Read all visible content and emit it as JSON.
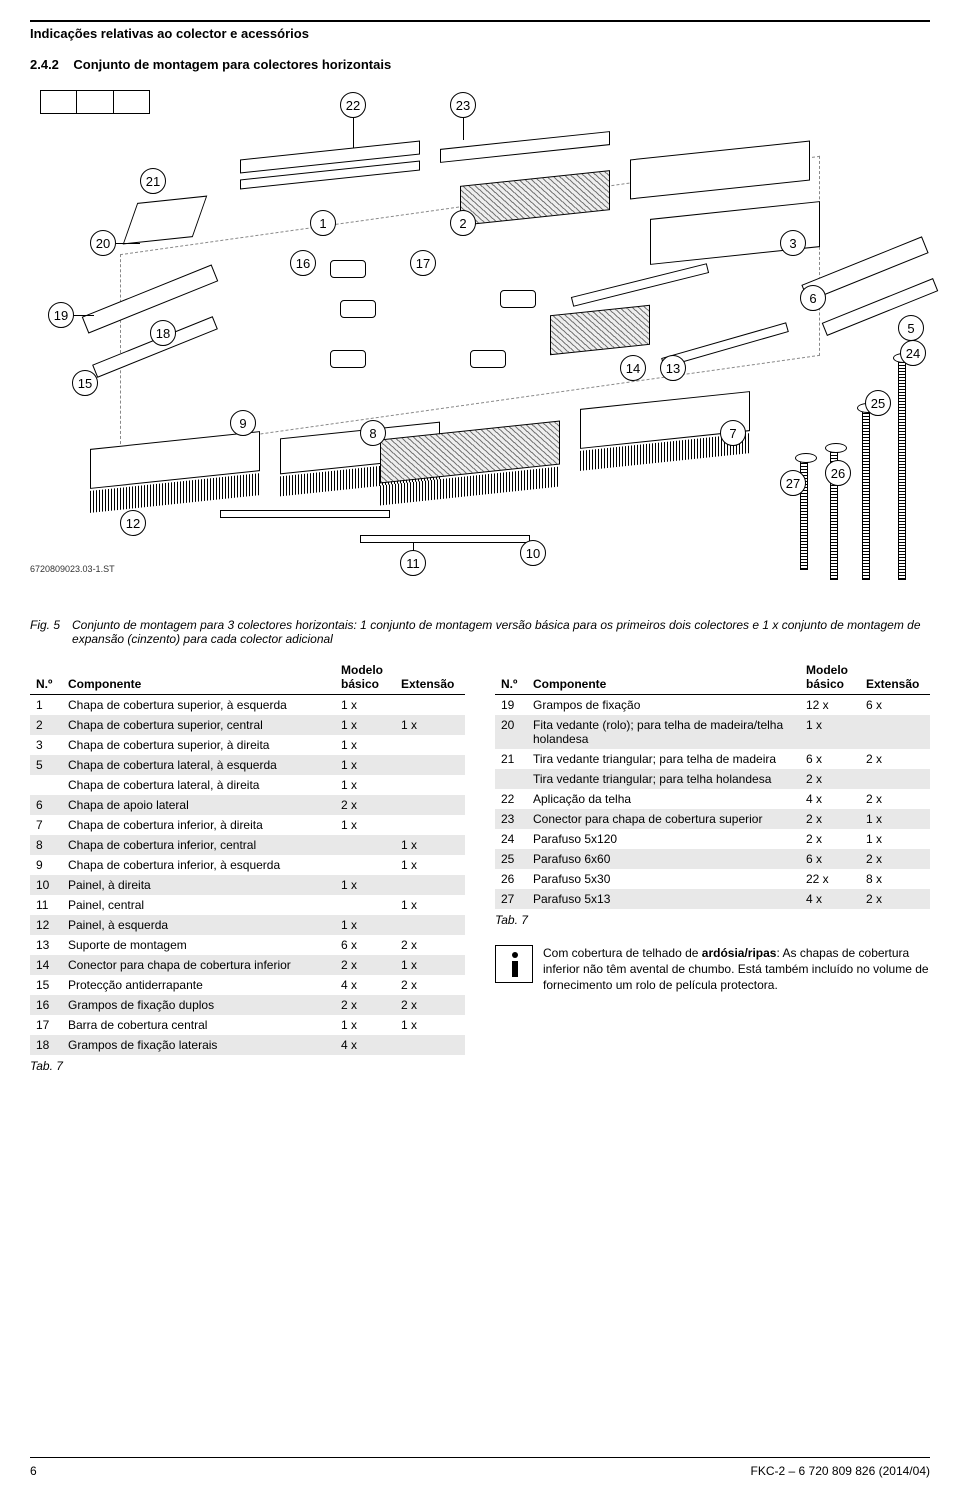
{
  "header": {
    "section_label": "Indicações relativas ao colector e acessórios",
    "subsection": "2.4.2",
    "subsection_title": "Conjunto de montagem para colectores horizontais"
  },
  "diagram": {
    "doc_id": "6720809023.03-1.ST",
    "callouts": [
      "1",
      "2",
      "3",
      "5",
      "6",
      "7",
      "8",
      "9",
      "10",
      "11",
      "12",
      "13",
      "14",
      "15",
      "16",
      "17",
      "18",
      "19",
      "20",
      "21",
      "22",
      "23",
      "24",
      "25",
      "26",
      "27"
    ]
  },
  "figure": {
    "label": "Fig. 5",
    "caption": "Conjunto de montagem para 3 colectores horizontais: 1 conjunto de montagem versão básica para os primeiros dois colectores e 1 x conjunto de montagem de expansão (cinzento) para cada colector adicional"
  },
  "tables": {
    "headers": {
      "num": "N.º",
      "comp": "Componente",
      "basic": "Modelo básico",
      "ext": "Extensão"
    },
    "left_rows": [
      {
        "n": "1",
        "c": "Chapa de cobertura superior, à esquerda",
        "b": "1 x",
        "e": "",
        "s": false
      },
      {
        "n": "2",
        "c": "Chapa de cobertura superior, central",
        "b": "1 x",
        "e": "1 x",
        "s": true
      },
      {
        "n": "3",
        "c": "Chapa de cobertura superior, à direita",
        "b": "1 x",
        "e": "",
        "s": false
      },
      {
        "n": "5",
        "c": "Chapa de cobertura lateral, à esquerda",
        "b": "1 x",
        "e": "",
        "s": true
      },
      {
        "n": "",
        "c": "Chapa de cobertura lateral, à direita",
        "b": "1 x",
        "e": "",
        "s": false
      },
      {
        "n": "6",
        "c": "Chapa de apoio lateral",
        "b": "2 x",
        "e": "",
        "s": true
      },
      {
        "n": "7",
        "c": "Chapa de cobertura inferior, à direita",
        "b": "1 x",
        "e": "",
        "s": false
      },
      {
        "n": "8",
        "c": "Chapa de cobertura inferior, central",
        "b": "",
        "e": "1 x",
        "s": true
      },
      {
        "n": "9",
        "c": "Chapa de cobertura inferior, à esquerda",
        "b": "",
        "e": "1 x",
        "s": false
      },
      {
        "n": "10",
        "c": "Painel, à direita",
        "b": "1 x",
        "e": "",
        "s": true
      },
      {
        "n": "11",
        "c": "Painel, central",
        "b": "",
        "e": "1 x",
        "s": false
      },
      {
        "n": "12",
        "c": "Painel, à esquerda",
        "b": "1 x",
        "e": "",
        "s": true
      },
      {
        "n": "13",
        "c": "Suporte de montagem",
        "b": "6 x",
        "e": "2 x",
        "s": false
      },
      {
        "n": "14",
        "c": "Conector para chapa de cobertura inferior",
        "b": "2 x",
        "e": "1 x",
        "s": true
      },
      {
        "n": "15",
        "c": "Protecção antiderrapante",
        "b": "4 x",
        "e": "2 x",
        "s": false
      },
      {
        "n": "16",
        "c": "Grampos de fixação duplos",
        "b": "2 x",
        "e": "2 x",
        "s": true
      },
      {
        "n": "17",
        "c": "Barra de cobertura central",
        "b": "1 x",
        "e": "1 x",
        "s": false
      },
      {
        "n": "18",
        "c": "Grampos de fixação laterais",
        "b": "4 x",
        "e": "",
        "s": true
      }
    ],
    "left_label": "Tab. 7",
    "right_rows": [
      {
        "n": "19",
        "c": "Grampos de fixação",
        "b": "12 x",
        "e": "6 x",
        "s": false
      },
      {
        "n": "20",
        "c": "Fita vedante (rolo); para telha de madeira/telha holandesa",
        "b": "1 x",
        "e": "",
        "s": true
      },
      {
        "n": "21",
        "c": "Tira vedante triangular; para telha de madeira",
        "b": "6 x",
        "e": "2 x",
        "s": false
      },
      {
        "n": "",
        "c": "Tira vedante triangular; para telha holandesa",
        "b": "2 x",
        "e": "",
        "s": true
      },
      {
        "n": "22",
        "c": "Aplicação da telha",
        "b": "4 x",
        "e": "2 x",
        "s": false
      },
      {
        "n": "23",
        "c": "Conector para chapa de cobertura superior",
        "b": "2 x",
        "e": "1 x",
        "s": true
      },
      {
        "n": "24",
        "c": "Parafuso 5x120",
        "b": "2 x",
        "e": "1 x",
        "s": false
      },
      {
        "n": "25",
        "c": "Parafuso 6x60",
        "b": "6 x",
        "e": "2 x",
        "s": true
      },
      {
        "n": "26",
        "c": "Parafuso 5x30",
        "b": "22 x",
        "e": "8 x",
        "s": false
      },
      {
        "n": "27",
        "c": "Parafuso 5x13",
        "b": "4 x",
        "e": "2 x",
        "s": true
      }
    ],
    "right_label": "Tab. 7"
  },
  "info": {
    "text_parts": [
      "Com cobertura de telhado de ",
      "ardósia/ripas",
      ": As chapas de cobertura inferior não têm avental de chumbo. Está também incluído no volume de fornecimento um rolo de película protectora."
    ]
  },
  "footer": {
    "page": "6",
    "doc": "FKC-2 – 6 720 809 826 (2014/04)"
  }
}
